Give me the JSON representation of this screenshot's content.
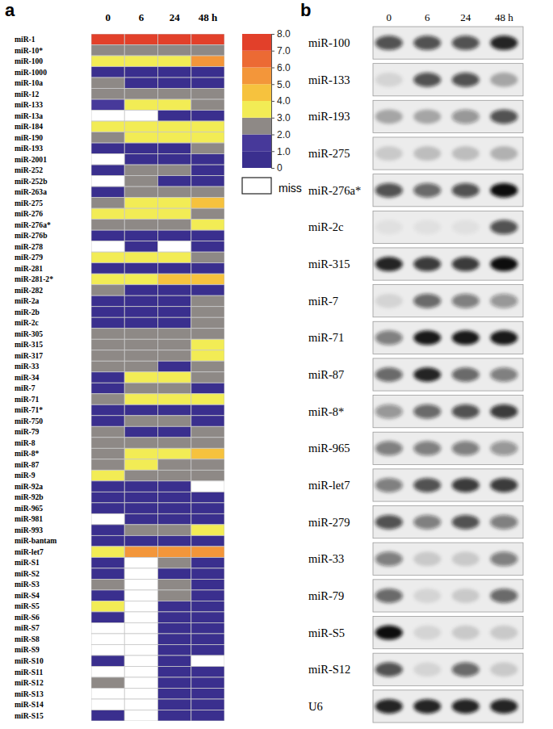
{
  "chart_data": [
    {
      "type": "heatmap",
      "panel_label": "a",
      "columns": [
        "0",
        "6",
        "24",
        "48 h"
      ],
      "rows": [
        "miR-1",
        "miR-10*",
        "miR-100",
        "miR-1000",
        "miR-10a",
        "miR-12",
        "miR-133",
        "miR-13a",
        "miR-184",
        "miR-190",
        "miR-193",
        "miR-2001",
        "miR-252",
        "miR-252b",
        "miR-263a",
        "miR-275",
        "miR-276",
        "miR-276a*",
        "miR-276b",
        "miR-278",
        "miR-279",
        "miR-281",
        "miR-281-2*",
        "miR-282",
        "miR-2a",
        "miR-2b",
        "miR-2c",
        "miR-305",
        "miR-315",
        "miR-317",
        "miR-33",
        "miR-34",
        "miR-7",
        "miR-71",
        "miR-71*",
        "miR-750",
        "miR-79",
        "miR-8",
        "miR-8*",
        "miR-87",
        "miR-9",
        "miR-92a",
        "miR-92b",
        "miR-965",
        "miR-981",
        "miR-993",
        "miR-bantam",
        "miR-let7",
        "miR-S1",
        "miR-S2",
        "miR-S3",
        "miR-S4",
        "miR-S5",
        "miR-S6",
        "miR-S7",
        "miR-S8",
        "miR-S9",
        "miR-S10",
        "miR-S11",
        "miR-S12",
        "miR-S13",
        "miR-S14",
        "miR-S15"
      ],
      "values": [
        [
          7.5,
          7.5,
          7.5,
          7.5
        ],
        [
          2.5,
          2.5,
          2.5,
          2.5
        ],
        [
          3.5,
          3.5,
          3.5,
          5.5
        ],
        [
          0.5,
          0.5,
          0.5,
          0.5
        ],
        [
          2.5,
          0.5,
          0.5,
          0.5
        ],
        [
          2.5,
          2.5,
          2.5,
          2.5
        ],
        [
          1.5,
          3.5,
          3.5,
          2.5
        ],
        [
          null,
          null,
          0.5,
          0.5
        ],
        [
          3.5,
          3.5,
          3.5,
          3.5
        ],
        [
          2.5,
          3.5,
          3.5,
          3.5
        ],
        [
          0.5,
          0.5,
          0.5,
          2.5
        ],
        [
          null,
          0.5,
          0.5,
          0.5
        ],
        [
          0.5,
          2.5,
          2.5,
          0.5
        ],
        [
          null,
          2.5,
          0.5,
          0.5
        ],
        [
          0.5,
          2.5,
          2.5,
          2.5
        ],
        [
          2.5,
          3.5,
          3.5,
          4.5
        ],
        [
          3.5,
          3.5,
          3.5,
          2.5
        ],
        [
          2.5,
          2.5,
          2.5,
          3.5
        ],
        [
          0.5,
          0.5,
          0.5,
          0.5
        ],
        [
          null,
          0.5,
          null,
          0.5
        ],
        [
          3.5,
          3.5,
          3.5,
          2.5
        ],
        [
          0.5,
          0.5,
          0.5,
          0.5
        ],
        [
          3.5,
          3.5,
          4.5,
          4.5
        ],
        [
          2.5,
          0.5,
          0.5,
          0.5
        ],
        [
          0.5,
          0.5,
          0.5,
          2.5
        ],
        [
          0.5,
          0.5,
          0.5,
          2.5
        ],
        [
          0.5,
          0.5,
          0.5,
          2.5
        ],
        [
          2.5,
          2.5,
          2.5,
          2.5
        ],
        [
          2.5,
          2.5,
          2.5,
          3.5
        ],
        [
          2.5,
          2.5,
          2.5,
          3.5
        ],
        [
          2.5,
          2.5,
          0.5,
          2.5
        ],
        [
          0.5,
          3.5,
          3.5,
          2.5
        ],
        [
          0.5,
          2.5,
          2.5,
          0.5
        ],
        [
          2.5,
          3.5,
          3.5,
          3.5
        ],
        [
          0.5,
          0.5,
          0.5,
          0.5
        ],
        [
          0.5,
          2.5,
          2.5,
          0.5
        ],
        [
          2.5,
          0.5,
          0.5,
          2.5
        ],
        [
          2.5,
          2.5,
          2.5,
          2.5
        ],
        [
          2.5,
          3.5,
          3.5,
          4.5
        ],
        [
          2.5,
          3.5,
          2.5,
          2.5
        ],
        [
          3.5,
          2.5,
          2.5,
          2.5
        ],
        [
          0.5,
          0.5,
          0.5,
          null
        ],
        [
          0.5,
          0.5,
          0.5,
          0.5
        ],
        [
          0.5,
          0.5,
          0.5,
          0.5
        ],
        [
          null,
          0.5,
          0.5,
          0.5
        ],
        [
          0.5,
          2.5,
          2.5,
          3.5
        ],
        [
          0.5,
          0.5,
          0.5,
          0.5
        ],
        [
          3.5,
          5.5,
          5.5,
          5.5
        ],
        [
          0.5,
          null,
          2.5,
          0.5
        ],
        [
          0.5,
          null,
          0.5,
          0.5
        ],
        [
          2.5,
          null,
          2.5,
          0.5
        ],
        [
          0.5,
          null,
          2.5,
          0.5
        ],
        [
          3.5,
          null,
          0.5,
          0.5
        ],
        [
          0.5,
          null,
          0.5,
          0.5
        ],
        [
          null,
          null,
          0.5,
          0.5
        ],
        [
          null,
          null,
          0.5,
          0.5
        ],
        [
          null,
          null,
          0.5,
          0.5
        ],
        [
          0.5,
          null,
          0.5,
          null
        ],
        [
          null,
          null,
          0.5,
          0.5
        ],
        [
          2.5,
          null,
          0.5,
          0.5
        ],
        [
          null,
          null,
          0.5,
          0.5
        ],
        [
          null,
          null,
          0.5,
          0.5
        ],
        [
          0.5,
          null,
          0.5,
          0.5
        ]
      ],
      "colorbar": {
        "range": [
          0,
          8
        ],
        "ticks": [
          0,
          {
            "value": 1,
            "label": "1.0"
          },
          {
            "value": 2,
            "label": "2.0"
          },
          {
            "value": 3,
            "label": "3.0"
          },
          {
            "value": 4,
            "label": "4.0"
          },
          {
            "value": 5,
            "label": "5.0"
          },
          {
            "value": 6,
            "label": "6.0"
          },
          {
            "value": 7,
            "label": "7.0"
          },
          {
            "value": 8,
            "label": "8.0"
          }
        ],
        "colors": [
          "#3a2f8e",
          "#47399a",
          "#8e8986",
          "#f2ec55",
          "#f6c23e",
          "#f3963a",
          "#ec6a34",
          "#e2402a"
        ]
      },
      "missing_label": "miss"
    },
    {
      "type": "blot",
      "panel_label": "b",
      "columns": [
        "0",
        "6",
        "24",
        "48 h"
      ],
      "rows": [
        "miR-100",
        "miR-133",
        "miR-193",
        "miR-275",
        "miR-276a*",
        "miR-2c",
        "miR-315",
        "miR-7",
        "miR-71",
        "miR-87",
        "miR-8*",
        "miR-965",
        "miR-let7",
        "miR-279",
        "miR-33",
        "miR-79",
        "miR-S5",
        "miR-S12",
        "U6"
      ],
      "intensity": [
        [
          0.7,
          0.7,
          0.7,
          0.9
        ],
        [
          0.1,
          0.7,
          0.7,
          0.3
        ],
        [
          0.3,
          0.3,
          0.4,
          0.7
        ],
        [
          0.15,
          0.2,
          0.2,
          0.25
        ],
        [
          0.7,
          0.6,
          0.7,
          1
        ],
        [
          0.05,
          0.05,
          0.05,
          0.7
        ],
        [
          0.9,
          0.8,
          0.8,
          1
        ],
        [
          0.1,
          0.6,
          0.5,
          0.4
        ],
        [
          0.5,
          0.95,
          0.95,
          0.95
        ],
        [
          0.6,
          0.9,
          0.6,
          0.5
        ],
        [
          0.4,
          0.6,
          0.7,
          0.8
        ],
        [
          0.5,
          0.5,
          0.5,
          0.4
        ],
        [
          0.5,
          0.7,
          0.8,
          0.8
        ],
        [
          0.7,
          0.5,
          0.7,
          0.5
        ],
        [
          0.5,
          0.15,
          0.15,
          0.5
        ],
        [
          0.6,
          0.1,
          0.15,
          0.6
        ],
        [
          1,
          0.1,
          0.15,
          0.15
        ],
        [
          0.7,
          0.1,
          0.6,
          0.15
        ],
        [
          0.9,
          0.9,
          0.9,
          0.9
        ]
      ]
    }
  ]
}
